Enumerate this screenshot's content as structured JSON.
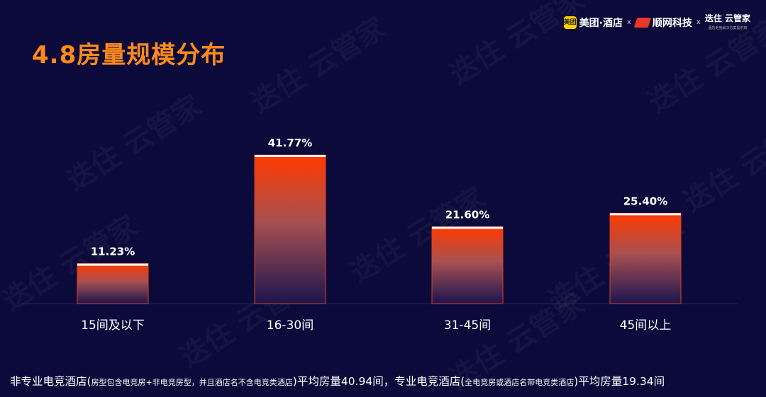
{
  "title": "4.8房量规模分布",
  "logos": {
    "meituan_mark": "美团",
    "meituan": "美团·酒店",
    "separator": "x",
    "shunwang": "顺网科技",
    "yunguanjia": "迭住 云管家",
    "yunguanjia_sub": "酒店电竞解决方案提供商"
  },
  "watermark": "迭住 云管家",
  "chart_data": {
    "type": "bar",
    "categories": [
      "15间及以下",
      "16-30间",
      "31-45间",
      "45间以上"
    ],
    "values": [
      11.23,
      41.77,
      21.6,
      25.4
    ],
    "value_labels": [
      "11.23%",
      "41.77%",
      "21.60%",
      "25.40%"
    ],
    "unit": "%",
    "ylim": [
      0,
      41.77
    ],
    "grid": false,
    "legend": "none",
    "colors": {
      "bar_top": "#ff3a00",
      "bar_mid": "#a85050",
      "bar_bottom": "#1c1550",
      "cap": "#ffffff",
      "text": "#ffffff"
    }
  },
  "footnote": {
    "part1": "非专业电竞酒店(",
    "part1_note": "房型包含电竞房+非电竞房型，并且酒店名不含电竞类酒店",
    "part2": ")平均房量40.94间，专业电竞酒店(",
    "part2_note": "全电竞房或酒店名带电竞类酒店",
    "part3": ")平均房量19.34间"
  }
}
